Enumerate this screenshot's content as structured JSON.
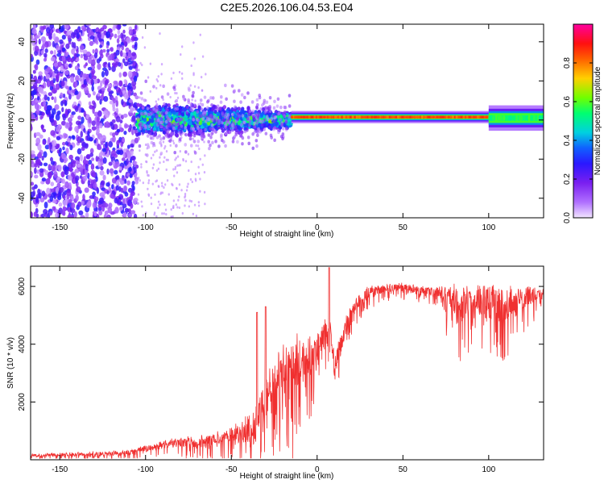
{
  "title": "C2E5.2026.106.04.53.E04",
  "colors": {
    "snr_line": "#f03030",
    "axis": "#000000",
    "colormap": [
      "#e5ccff",
      "#b070ff",
      "#7a1ff0",
      "#2a18ff",
      "#1060ff",
      "#00d0e0",
      "#00ff70",
      "#70ff00",
      "#ffd000",
      "#ff6000",
      "#ff1010",
      "#ff00a0"
    ]
  },
  "chart_data": [
    {
      "type": "heatmap",
      "name": "spectrogram",
      "xlabel": "Height of straight line (km)",
      "ylabel": "Frequency (Hz)",
      "xlim": [
        -167,
        132
      ],
      "ylim": [
        -50,
        49
      ],
      "x_ticks": [
        -150,
        -100,
        -50,
        0,
        50,
        100
      ],
      "x_tick_labels": [
        "-150",
        "-100",
        "-50",
        "0",
        "50",
        "100"
      ],
      "y_ticks": [
        -40,
        -20,
        0,
        20,
        40
      ],
      "y_tick_labels": [
        "-40",
        "-20",
        "0",
        "20",
        "40"
      ],
      "colorbar": {
        "label": "Normalized spectral amplitude",
        "range": [
          0,
          1
        ],
        "ticks": [
          0.0,
          0.2,
          0.4,
          0.6,
          0.8
        ],
        "tick_labels": [
          "0.0",
          "0.2",
          "0.4",
          "0.6",
          "0.8"
        ]
      },
      "trace_segments": [
        {
          "x_start": -167,
          "x_end": -105,
          "center_hz": 0,
          "spread_hz": 49,
          "amplitude": 0.25
        },
        {
          "x_start": -105,
          "x_end": -15,
          "center_hz": 0,
          "spread_hz": 8,
          "amplitude": 0.45
        },
        {
          "x_start": -15,
          "x_end": 100,
          "center_hz": 1.5,
          "spread_hz": 1.2,
          "amplitude": 0.88
        },
        {
          "x_start": 100,
          "x_end": 132,
          "center_hz": 1,
          "spread_hz": 2.5,
          "amplitude": 0.6
        }
      ]
    },
    {
      "type": "line",
      "name": "snr",
      "xlabel": "Height of straight line (km)",
      "ylabel": "SNR (10 * v/v)",
      "xlim": [
        -167,
        132
      ],
      "ylim": [
        0,
        6700
      ],
      "x_ticks": [
        -150,
        -100,
        -50,
        0,
        50,
        100
      ],
      "x_tick_labels": [
        "-150",
        "-100",
        "-50",
        "0",
        "50",
        "100"
      ],
      "y_ticks": [
        2000,
        4000,
        6000
      ],
      "y_tick_labels": [
        "2000",
        "4000",
        "6000"
      ],
      "envelope": {
        "x": [
          -167,
          -150,
          -130,
          -110,
          -100,
          -90,
          -80,
          -70,
          -60,
          -50,
          -40,
          -35,
          -30,
          -25,
          -20,
          -15,
          -10,
          -5,
          0,
          5,
          8,
          10,
          15,
          20,
          25,
          30,
          40,
          50,
          60,
          70,
          80,
          90,
          100,
          110,
          120,
          132
        ],
        "y": [
          180,
          200,
          250,
          300,
          450,
          600,
          700,
          750,
          850,
          1000,
          1300,
          1800,
          2600,
          3200,
          3600,
          3800,
          3850,
          4000,
          4200,
          4700,
          4600,
          3400,
          4500,
          5300,
          5700,
          5900,
          6000,
          6050,
          5950,
          5900,
          5800,
          5850,
          5800,
          5800,
          5850,
          5900
        ]
      },
      "noise": {
        "x": [
          -167,
          -100,
          -50,
          -35,
          -20,
          -10,
          0,
          20,
          40,
          70,
          80,
          100,
          110,
          132
        ],
        "amplitude": [
          120,
          250,
          700,
          1600,
          2500,
          2400,
          1400,
          700,
          350,
          400,
          1600,
          1400,
          1700,
          500
        ]
      },
      "peak_annotations": [
        {
          "x": 7,
          "y": 6650
        },
        {
          "x": -30,
          "y": 5300
        },
        {
          "x": -35,
          "y": 5100
        }
      ]
    }
  ]
}
